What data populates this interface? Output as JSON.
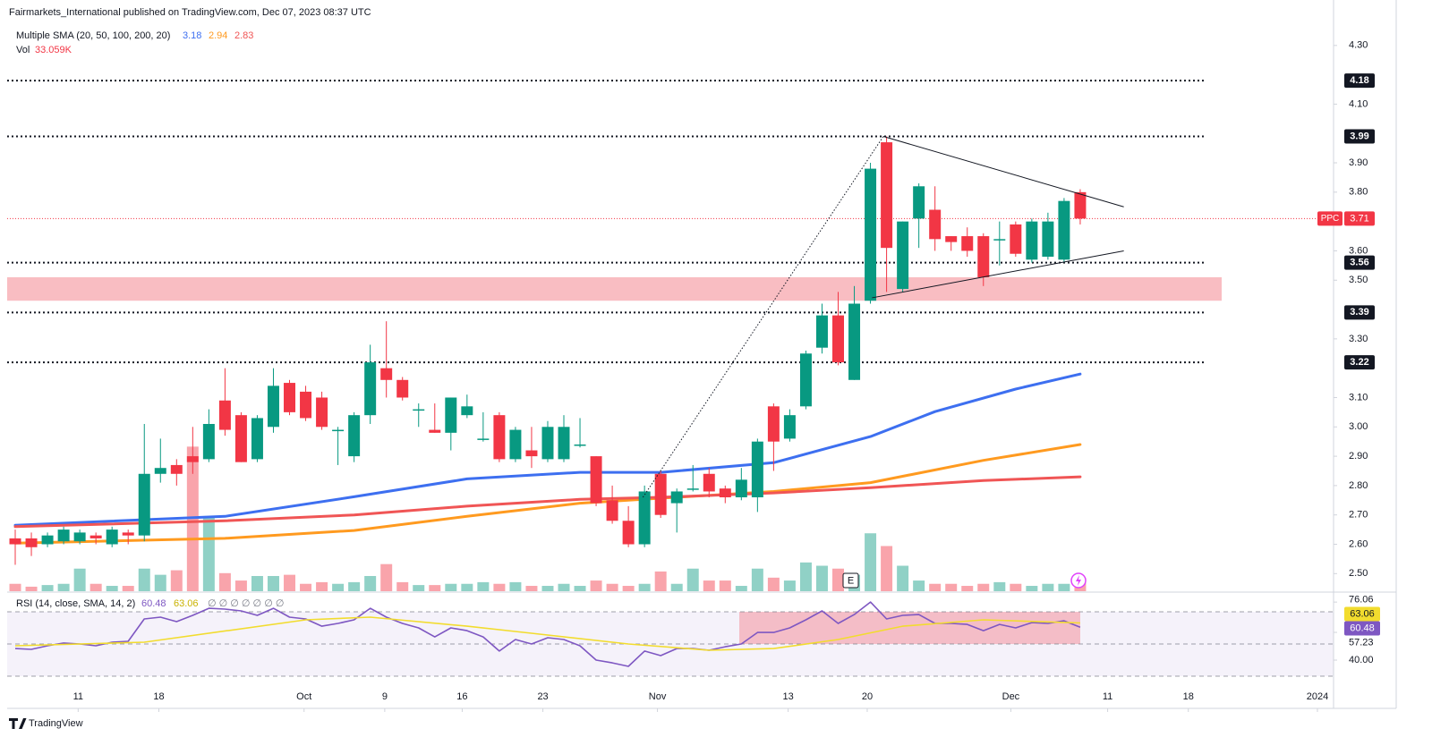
{
  "header": {
    "publisher": "Fairmarkets_International published on TradingView.com, Dec 07, 2023 08:37 UTC",
    "sma_legend": "Multiple SMA (20, 50, 100, 200, 20)",
    "vol_legend": "Vol",
    "vol_value": "33.059K",
    "rsi_legend": "RSI (14, close, SMA, 14, 2)",
    "rsi_flags": "∅ ∅ ∅ ∅ ∅ ∅ ∅",
    "event_marker": "E",
    "brand": "TradingView"
  },
  "chart_data": [
    {
      "type": "candlestick",
      "up_color": "#089981",
      "down_color": "#f23645",
      "xlim": [
        -0.5,
        81.7
      ],
      "xticks": [
        {
          "value": 3.9,
          "label": "11"
        },
        {
          "value": 8.9,
          "label": "18"
        },
        {
          "value": 17.9,
          "label": "Oct"
        },
        {
          "value": 22.9,
          "label": "9"
        },
        {
          "value": 27.7,
          "label": "16"
        },
        {
          "value": 32.7,
          "label": "23"
        },
        {
          "value": 39.8,
          "label": "Nov"
        },
        {
          "value": 47.9,
          "label": "13"
        },
        {
          "value": 52.8,
          "label": "20"
        },
        {
          "value": 61.7,
          "label": "Dec"
        },
        {
          "value": 67.7,
          "label": "11"
        },
        {
          "value": 72.7,
          "label": "18"
        },
        {
          "value": 80.7,
          "label": "2024"
        }
      ],
      "ylim": [
        2.44,
        4.4
      ],
      "yticks": [
        {
          "value": 4.3,
          "label": "4.30"
        },
        {
          "value": 4.1,
          "label": "4.10"
        },
        {
          "value": 3.9,
          "label": "3.90"
        },
        {
          "value": 3.8,
          "label": "3.80"
        },
        {
          "value": 3.6,
          "label": "3.60"
        },
        {
          "value": 3.5,
          "label": "3.50"
        },
        {
          "value": 3.3,
          "label": "3.30"
        },
        {
          "value": 3.1,
          "label": "3.10"
        },
        {
          "value": 3.0,
          "label": "3.00"
        },
        {
          "value": 2.9,
          "label": "2.90"
        },
        {
          "value": 2.8,
          "label": "2.80"
        },
        {
          "value": 2.7,
          "label": "2.70"
        },
        {
          "value": 2.6,
          "label": "2.60"
        },
        {
          "value": 2.5,
          "label": "2.50"
        }
      ],
      "grid": false,
      "y2lim": [
        0,
        1400
      ],
      "open": [
        2.62,
        2.62,
        2.6,
        2.61,
        2.61,
        2.63,
        2.6,
        2.64,
        2.63,
        2.84,
        2.87,
        2.9,
        2.89,
        3.09,
        3.04,
        2.89,
        3.0,
        3.15,
        3.12,
        3.1,
        2.99,
        2.9,
        3.04,
        3.2,
        3.16,
        3.06,
        2.99,
        2.98,
        3.04,
        2.96,
        3.04,
        2.89,
        2.92,
        2.89,
        2.89,
        2.94,
        2.9,
        2.75,
        2.68,
        2.6,
        2.84,
        2.74,
        2.79,
        2.84,
        2.79,
        2.76,
        2.76,
        3.07,
        2.96,
        3.07,
        3.27,
        3.38,
        3.16,
        3.43,
        3.97,
        3.47,
        3.71,
        3.74,
        3.65,
        3.65,
        3.65,
        3.64,
        3.69,
        3.57,
        3.58,
        3.57,
        3.8
      ],
      "high": [
        2.65,
        2.64,
        2.64,
        2.66,
        2.65,
        2.64,
        2.66,
        2.65,
        3.01,
        2.96,
        2.89,
        3.0,
        3.06,
        3.2,
        3.05,
        3.04,
        3.2,
        3.16,
        3.14,
        3.12,
        3.0,
        3.05,
        3.28,
        3.36,
        3.17,
        3.08,
        3.08,
        3.1,
        3.11,
        3.05,
        3.05,
        3.0,
        3.0,
        3.02,
        3.04,
        3.03,
        2.9,
        2.8,
        2.73,
        2.8,
        2.85,
        2.79,
        2.87,
        2.86,
        2.8,
        2.86,
        2.96,
        3.08,
        3.06,
        3.26,
        3.42,
        3.46,
        3.48,
        3.9,
        3.99,
        3.7,
        3.83,
        3.82,
        3.65,
        3.68,
        3.66,
        3.7,
        3.7,
        3.71,
        3.73,
        3.78,
        3.81
      ],
      "low": [
        2.53,
        2.56,
        2.59,
        2.6,
        2.6,
        2.6,
        2.59,
        2.6,
        2.61,
        2.81,
        2.8,
        2.84,
        2.88,
        2.97,
        2.88,
        2.88,
        2.98,
        3.04,
        3.02,
        2.99,
        2.87,
        2.88,
        3.01,
        3.1,
        3.09,
        3.0,
        2.98,
        2.92,
        3.03,
        2.95,
        2.88,
        2.88,
        2.86,
        2.88,
        2.88,
        2.93,
        2.73,
        2.67,
        2.59,
        2.59,
        2.69,
        2.64,
        2.78,
        2.76,
        2.74,
        2.75,
        2.71,
        2.85,
        2.95,
        3.06,
        3.25,
        3.21,
        3.16,
        3.42,
        3.46,
        3.46,
        3.61,
        3.6,
        3.6,
        3.58,
        3.48,
        3.55,
        3.58,
        3.56,
        3.57,
        3.56,
        3.69
      ],
      "close": [
        2.6,
        2.59,
        2.63,
        2.65,
        2.64,
        2.62,
        2.65,
        2.63,
        2.84,
        2.86,
        2.84,
        2.88,
        3.01,
        2.99,
        2.88,
        3.03,
        3.14,
        3.05,
        3.03,
        3.0,
        2.99,
        3.04,
        3.22,
        3.16,
        3.1,
        3.06,
        2.98,
        3.1,
        3.07,
        2.96,
        2.89,
        2.99,
        2.9,
        3.0,
        3.0,
        2.94,
        2.74,
        2.68,
        2.6,
        2.78,
        2.7,
        2.78,
        2.79,
        2.78,
        2.76,
        2.82,
        2.95,
        2.95,
        3.04,
        3.25,
        3.38,
        3.22,
        3.42,
        3.88,
        3.61,
        3.7,
        3.82,
        3.64,
        3.63,
        3.6,
        3.51,
        3.64,
        3.59,
        3.7,
        3.7,
        3.77,
        3.71
      ],
      "volume": [
        18,
        11,
        15,
        18,
        55,
        18,
        13,
        13,
        55,
        40,
        51,
        352,
        183,
        44,
        26,
        37,
        37,
        40,
        18,
        22,
        18,
        22,
        37,
        66,
        22,
        15,
        15,
        18,
        18,
        22,
        18,
        22,
        13,
        13,
        18,
        13,
        26,
        18,
        13,
        18,
        48,
        18,
        55,
        26,
        26,
        13,
        55,
        33,
        26,
        70,
        62,
        55,
        40,
        141,
        110,
        62,
        26,
        18,
        18,
        13,
        18,
        22,
        18,
        13,
        18,
        18,
        33.059
      ],
      "series": [
        {
          "color": "#3d6ff0",
          "x": [
            0,
            13,
            21,
            28,
            35,
            40,
            47,
            53,
            57,
            62,
            66
          ],
          "values": [
            2.665,
            2.695,
            2.762,
            2.823,
            2.845,
            2.845,
            2.878,
            2.967,
            3.052,
            3.129,
            3.18
          ]
        },
        {
          "color": "#ff9a1f",
          "x": [
            0,
            13,
            21,
            28,
            35,
            40,
            47,
            53,
            60,
            66
          ],
          "values": [
            2.604,
            2.62,
            2.647,
            2.695,
            2.74,
            2.757,
            2.78,
            2.81,
            2.886,
            2.94
          ]
        },
        {
          "color": "#f05555",
          "x": [
            0,
            13,
            21,
            28,
            35,
            40,
            47,
            53,
            60,
            66
          ],
          "values": [
            2.66,
            2.68,
            2.7,
            2.73,
            2.753,
            2.76,
            2.775,
            2.793,
            2.817,
            2.83
          ]
        }
      ],
      "levels": [
        4.18,
        3.99,
        3.56,
        3.39,
        3.22
      ],
      "zone": [
        3.43,
        3.51
      ],
      "last_price": 3.71,
      "last_price_label": "PPC",
      "drawings": [
        {
          "style": "dotted",
          "x": [
            38.9,
            53.8
          ],
          "y": [
            2.76,
            3.99
          ]
        },
        {
          "style": "solid",
          "x": [
            53.8,
            68.7
          ],
          "y": [
            3.99,
            3.75
          ]
        },
        {
          "style": "solid",
          "x": [
            53.1,
            68.7
          ],
          "y": [
            3.44,
            3.6
          ]
        }
      ]
    },
    {
      "type": "line",
      "ylim": [
        25,
        81.7
      ],
      "yticks": [
        76.06,
        57.23,
        {
          "value": 40,
          "label": "40.00"
        }
      ],
      "bands": [
        30,
        50,
        70
      ],
      "series": [
        {
          "color": "#7e57c2",
          "values": [
            47.2,
            46.7,
            48.9,
            50.6,
            50,
            48.9,
            51.1,
            51.7,
            65.6,
            66.7,
            63.9,
            67.8,
            72.2,
            71.7,
            70.6,
            67.8,
            72.2,
            66.7,
            65.6,
            61.1,
            62.8,
            65,
            72.2,
            66.7,
            62.8,
            60,
            54.4,
            60,
            58.3,
            54.4,
            45.6,
            52.8,
            50,
            53.9,
            52.8,
            48.9,
            40,
            38.3,
            36.1,
            45.6,
            42.8,
            47.2,
            47.2,
            46.1,
            48.3,
            50,
            57.2,
            57.2,
            60,
            65,
            70.6,
            62.8,
            68.3,
            76.06,
            65.6,
            67.8,
            68.3,
            62.8,
            62.8,
            62.2,
            58.3,
            62.2,
            60,
            63.3,
            62.8,
            64.4,
            60.48
          ]
        },
        {
          "color": "#f2dc2e",
          "x": [
            0,
            8,
            18,
            22,
            28,
            32,
            38,
            43,
            47,
            51,
            55,
            60,
            66
          ],
          "values": [
            48.9,
            51.1,
            65,
            66.7,
            61.1,
            56.7,
            50,
            46.1,
            47.2,
            52.8,
            61.1,
            65,
            63.06
          ]
        }
      ]
    }
  ]
}
